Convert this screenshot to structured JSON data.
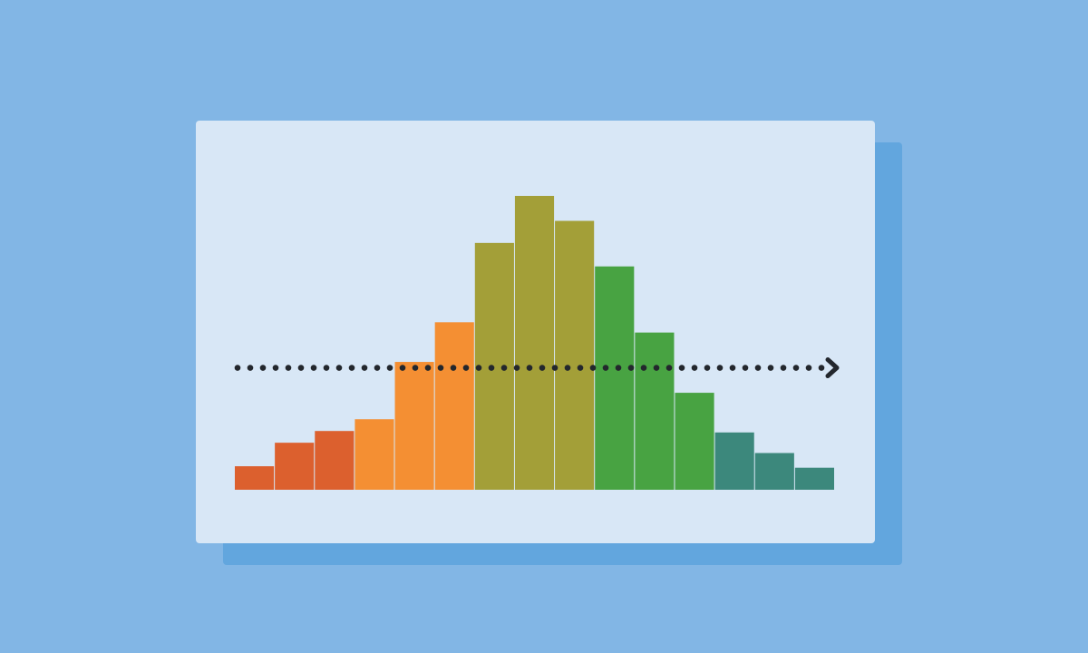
{
  "background_color": "#82b6e5",
  "card": {
    "background_color": "#d8e7f6",
    "shadow_color": "#62a6de"
  },
  "chart_data": {
    "type": "bar",
    "title": "",
    "xlabel": "",
    "ylabel": "",
    "ylim": [
      0,
      100
    ],
    "grid": false,
    "legend": "none",
    "values": [
      8,
      16,
      20,
      24,
      43.5,
      57,
      84,
      100,
      91.5,
      76,
      53.5,
      33,
      19.5,
      12.5,
      7.5
    ],
    "bar_colors": [
      "#dc602e",
      "#dc602e",
      "#dc602e",
      "#f48f33",
      "#f48f33",
      "#f48f33",
      "#a39f38",
      "#a39f38",
      "#a39f38",
      "#48a342",
      "#48a342",
      "#48a342",
      "#3c887c",
      "#3c887c",
      "#3c887c"
    ],
    "reference_line": {
      "style": "dotted",
      "direction": "right",
      "color": "#23272d",
      "arrowhead": true,
      "value": 41.5
    }
  }
}
